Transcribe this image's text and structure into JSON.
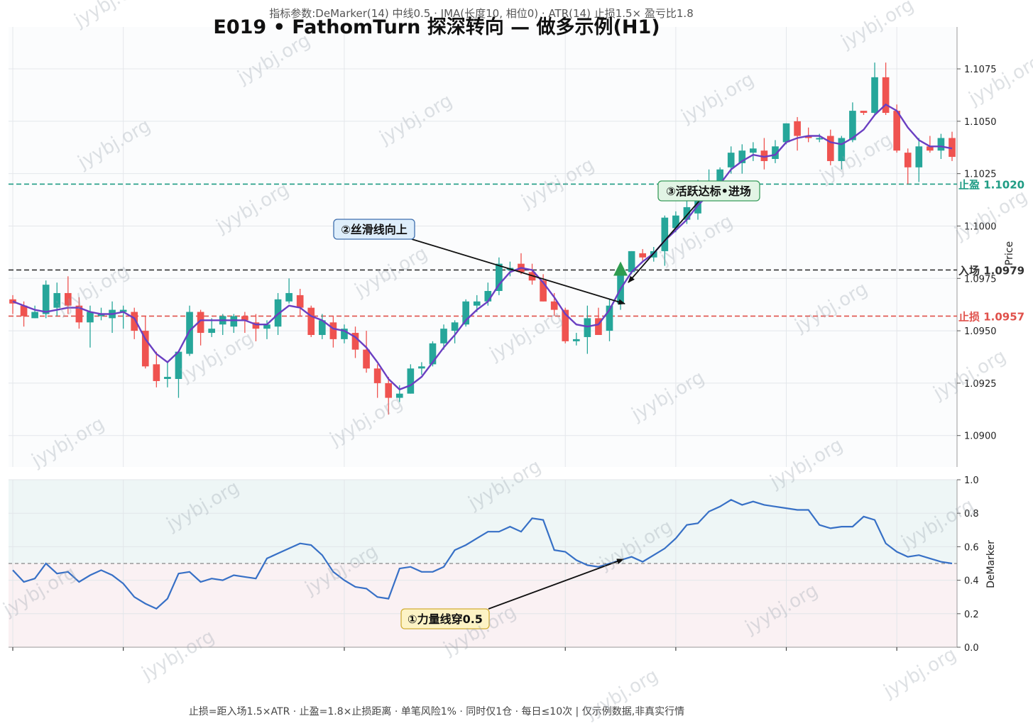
{
  "subtitle": "指标参数:DeMarker(14) 中线0.5 · JMA(长度10, 相位0) · ATR(14) 止损1.5× 盈亏比1.8",
  "title": "E019 • FathomTurn 探深转向 — 做多示例(H1)",
  "footer": "止损=距入场1.5×ATR · 止盈=1.8×止损距离 · 单笔风险1% · 同时仅1仓 · 每日≤10次 | 仅示例数据,非真实行情",
  "watermark": "jyybj.org",
  "colors": {
    "up": "#26a69a",
    "down": "#ef5350",
    "jma": "#6a3fc2",
    "demarker": "#3770c6",
    "take_profit": "#1f9c84",
    "entry": "#333333",
    "stop_loss": "#e0514b",
    "entry_marker": "#2e9c4f"
  },
  "annotations": {
    "a1": "①力量线穿0.5",
    "a2": "②丝滑线向上",
    "a3": "③活跃达标•进场"
  },
  "chart_data": [
    {
      "type": "candlestick",
      "ylabel": "Price",
      "ylim": [
        1.0885,
        1.1095
      ],
      "yticks": [
        "1.0900",
        "1.0925",
        "1.0950",
        "1.0975",
        "1.1000",
        "1.1025",
        "1.1050",
        "1.1075"
      ],
      "ytick_values": [
        1.09,
        1.0925,
        1.095,
        1.0975,
        1.1,
        1.1025,
        1.105,
        1.1075
      ],
      "x_ticks_at_bar": [
        0,
        10,
        30,
        50,
        60,
        70,
        80
      ],
      "candles": [
        {
          "o": 1.0965,
          "h": 1.0967,
          "l": 1.0958,
          "c": 1.0963
        },
        {
          "o": 1.0962,
          "h": 1.0964,
          "l": 1.0952,
          "c": 1.0957
        },
        {
          "o": 1.0956,
          "h": 1.0962,
          "l": 1.0956,
          "c": 1.0959
        },
        {
          "o": 1.0958,
          "h": 1.0974,
          "l": 1.0956,
          "c": 1.0972
        },
        {
          "o": 1.0961,
          "h": 1.0973,
          "l": 1.0957,
          "c": 1.0968
        },
        {
          "o": 1.0968,
          "h": 1.0976,
          "l": 1.0958,
          "c": 1.0962
        },
        {
          "o": 1.0962,
          "h": 1.0966,
          "l": 1.0951,
          "c": 1.0954
        },
        {
          "o": 1.0954,
          "h": 1.0962,
          "l": 1.0942,
          "c": 1.0959
        },
        {
          "o": 1.0957,
          "h": 1.0961,
          "l": 1.0955,
          "c": 1.0958
        },
        {
          "o": 1.0956,
          "h": 1.0964,
          "l": 1.0949,
          "c": 1.096
        },
        {
          "o": 1.0959,
          "h": 1.0962,
          "l": 1.0951,
          "c": 1.096
        },
        {
          "o": 1.0959,
          "h": 1.0961,
          "l": 1.0946,
          "c": 1.095
        },
        {
          "o": 1.095,
          "h": 1.0957,
          "l": 1.0932,
          "c": 1.0933
        },
        {
          "o": 1.0934,
          "h": 1.094,
          "l": 1.0923,
          "c": 1.0926
        },
        {
          "o": 1.0927,
          "h": 1.0935,
          "l": 1.0923,
          "c": 1.0928
        },
        {
          "o": 1.0927,
          "h": 1.094,
          "l": 1.0918,
          "c": 1.094
        },
        {
          "o": 1.0939,
          "h": 1.0962,
          "l": 1.0938,
          "c": 1.0959
        },
        {
          "o": 1.0959,
          "h": 1.096,
          "l": 1.0943,
          "c": 1.0949
        },
        {
          "o": 1.0949,
          "h": 1.0956,
          "l": 1.0947,
          "c": 1.0951
        },
        {
          "o": 1.0953,
          "h": 1.0958,
          "l": 1.0948,
          "c": 1.0957
        },
        {
          "o": 1.0952,
          "h": 1.0958,
          "l": 1.0949,
          "c": 1.0957
        },
        {
          "o": 1.0957,
          "h": 1.0959,
          "l": 1.0949,
          "c": 1.0955
        },
        {
          "o": 1.0954,
          "h": 1.0958,
          "l": 1.0945,
          "c": 1.0951
        },
        {
          "o": 1.0951,
          "h": 1.0955,
          "l": 1.0946,
          "c": 1.0953
        },
        {
          "o": 1.0952,
          "h": 1.0968,
          "l": 1.0948,
          "c": 1.0965
        },
        {
          "o": 1.0964,
          "h": 1.0975,
          "l": 1.0963,
          "c": 1.0968
        },
        {
          "o": 1.0967,
          "h": 1.097,
          "l": 1.0957,
          "c": 1.0961
        },
        {
          "o": 1.0961,
          "h": 1.0962,
          "l": 1.0947,
          "c": 1.0948
        },
        {
          "o": 1.0948,
          "h": 1.0958,
          "l": 1.0946,
          "c": 1.0955
        },
        {
          "o": 1.0954,
          "h": 1.0957,
          "l": 1.0942,
          "c": 1.0946
        },
        {
          "o": 1.0946,
          "h": 1.0953,
          "l": 1.0944,
          "c": 1.0951
        },
        {
          "o": 1.0949,
          "h": 1.0952,
          "l": 1.0937,
          "c": 1.0941
        },
        {
          "o": 1.0941,
          "h": 1.095,
          "l": 1.093,
          "c": 1.0932
        },
        {
          "o": 1.0932,
          "h": 1.0934,
          "l": 1.0918,
          "c": 1.0925
        },
        {
          "o": 1.0925,
          "h": 1.0928,
          "l": 1.091,
          "c": 1.0918
        },
        {
          "o": 1.0918,
          "h": 1.0924,
          "l": 1.0916,
          "c": 1.092
        },
        {
          "o": 1.092,
          "h": 1.0934,
          "l": 1.092,
          "c": 1.0932
        },
        {
          "o": 1.0932,
          "h": 1.0935,
          "l": 1.0929,
          "c": 1.0933
        },
        {
          "o": 1.0934,
          "h": 1.0945,
          "l": 1.0933,
          "c": 1.0944
        },
        {
          "o": 1.0944,
          "h": 1.0953,
          "l": 1.0941,
          "c": 1.0951
        },
        {
          "o": 1.095,
          "h": 1.0955,
          "l": 1.0944,
          "c": 1.0954
        },
        {
          "o": 1.0953,
          "h": 1.0965,
          "l": 1.0952,
          "c": 1.0964
        },
        {
          "o": 1.0962,
          "h": 1.0967,
          "l": 1.0959,
          "c": 1.0964
        },
        {
          "o": 1.0964,
          "h": 1.0973,
          "l": 1.0962,
          "c": 1.0969
        },
        {
          "o": 1.0969,
          "h": 1.0985,
          "l": 1.0967,
          "c": 1.0982
        },
        {
          "o": 1.0979,
          "h": 1.0983,
          "l": 1.0976,
          "c": 1.098
        },
        {
          "o": 1.0982,
          "h": 1.0987,
          "l": 1.0977,
          "c": 1.0978
        },
        {
          "o": 1.0978,
          "h": 1.0982,
          "l": 1.0972,
          "c": 1.0974
        },
        {
          "o": 1.0974,
          "h": 1.0977,
          "l": 1.0964,
          "c": 1.0964
        },
        {
          "o": 1.0964,
          "h": 1.0968,
          "l": 1.0957,
          "c": 1.096
        },
        {
          "o": 1.096,
          "h": 1.0961,
          "l": 1.0944,
          "c": 1.0945
        },
        {
          "o": 1.0945,
          "h": 1.0949,
          "l": 1.0943,
          "c": 1.0946
        },
        {
          "o": 1.0947,
          "h": 1.0962,
          "l": 1.0939,
          "c": 1.0956
        },
        {
          "o": 1.0956,
          "h": 1.0961,
          "l": 1.0948,
          "c": 1.0948
        },
        {
          "o": 1.095,
          "h": 1.0965,
          "l": 1.0945,
          "c": 1.0962
        },
        {
          "o": 1.0963,
          "h": 1.0978,
          "l": 1.096,
          "c": 1.0978
        },
        {
          "o": 1.0978,
          "h": 1.0988,
          "l": 1.0977,
          "c": 1.0988
        },
        {
          "o": 1.0987,
          "h": 1.0989,
          "l": 1.0983,
          "c": 1.0985
        },
        {
          "o": 1.0985,
          "h": 1.099,
          "l": 1.0983,
          "c": 1.0988
        },
        {
          "o": 1.0988,
          "h": 1.1005,
          "l": 1.0981,
          "c": 1.1004
        },
        {
          "o": 1.0999,
          "h": 1.1007,
          "l": 1.0997,
          "c": 1.1005
        },
        {
          "o": 1.1003,
          "h": 1.1012,
          "l": 1.1001,
          "c": 1.1009
        },
        {
          "o": 1.1006,
          "h": 1.1022,
          "l": 1.1003,
          "c": 1.1019
        },
        {
          "o": 1.1018,
          "h": 1.1027,
          "l": 1.1013,
          "c": 1.1018
        },
        {
          "o": 1.1018,
          "h": 1.1028,
          "l": 1.1016,
          "c": 1.1027
        },
        {
          "o": 1.1028,
          "h": 1.1038,
          "l": 1.1025,
          "c": 1.1035
        },
        {
          "o": 1.103,
          "h": 1.1039,
          "l": 1.1025,
          "c": 1.1036
        },
        {
          "o": 1.1035,
          "h": 1.104,
          "l": 1.1031,
          "c": 1.1037
        },
        {
          "o": 1.1036,
          "h": 1.1042,
          "l": 1.1027,
          "c": 1.1031
        },
        {
          "o": 1.1032,
          "h": 1.1041,
          "l": 1.103,
          "c": 1.1038
        },
        {
          "o": 1.104,
          "h": 1.1049,
          "l": 1.1039,
          "c": 1.1049
        },
        {
          "o": 1.105,
          "h": 1.1052,
          "l": 1.1036,
          "c": 1.1043
        },
        {
          "o": 1.1043,
          "h": 1.1047,
          "l": 1.104,
          "c": 1.1042
        },
        {
          "o": 1.1042,
          "h": 1.1044,
          "l": 1.104,
          "c": 1.1042
        },
        {
          "o": 1.1043,
          "h": 1.1046,
          "l": 1.1029,
          "c": 1.1031
        },
        {
          "o": 1.1031,
          "h": 1.1043,
          "l": 1.1027,
          "c": 1.1042
        },
        {
          "o": 1.1041,
          "h": 1.1059,
          "l": 1.104,
          "c": 1.1055
        },
        {
          "o": 1.1055,
          "h": 1.1055,
          "l": 1.1053,
          "c": 1.1054
        },
        {
          "o": 1.1054,
          "h": 1.1078,
          "l": 1.1053,
          "c": 1.1071
        },
        {
          "o": 1.1071,
          "h": 1.1078,
          "l": 1.1053,
          "c": 1.1054
        },
        {
          "o": 1.1055,
          "h": 1.1058,
          "l": 1.1035,
          "c": 1.1036
        },
        {
          "o": 1.1035,
          "h": 1.1037,
          "l": 1.102,
          "c": 1.1028
        },
        {
          "o": 1.1028,
          "h": 1.1042,
          "l": 1.1021,
          "c": 1.1038
        },
        {
          "o": 1.1038,
          "h": 1.1043,
          "l": 1.1035,
          "c": 1.1036
        },
        {
          "o": 1.1036,
          "h": 1.1044,
          "l": 1.1032,
          "c": 1.1042
        },
        {
          "o": 1.1042,
          "h": 1.1045,
          "l": 1.1031,
          "c": 1.1033
        }
      ],
      "jma": [
        1.0964,
        1.0962,
        1.096,
        1.0959,
        1.096,
        1.0961,
        1.0961,
        1.0959,
        1.0958,
        1.0958,
        1.0959,
        1.0956,
        1.0946,
        1.0939,
        1.0935,
        1.094,
        1.095,
        1.0955,
        1.0955,
        1.0955,
        1.0955,
        1.0955,
        1.0953,
        1.0953,
        1.0958,
        1.0962,
        1.0961,
        1.0957,
        1.0955,
        1.0951,
        1.095,
        1.0947,
        1.0942,
        1.0935,
        1.0927,
        1.0922,
        1.0924,
        1.0928,
        1.0935,
        1.0942,
        1.0948,
        1.0955,
        1.096,
        1.0964,
        1.0972,
        1.0978,
        1.098,
        1.0979,
        1.0973,
        1.0966,
        1.0958,
        1.0953,
        1.0952,
        1.0953,
        1.096,
        1.097,
        1.0978,
        1.0983,
        1.0987,
        1.0993,
        1.0998,
        1.1003,
        1.101,
        1.1015,
        1.102,
        1.1027,
        1.1031,
        1.1034,
        1.1033,
        1.1034,
        1.104,
        1.1042,
        1.1043,
        1.1043,
        1.104,
        1.1039,
        1.1042,
        1.1046,
        1.1053,
        1.1058,
        1.1055,
        1.1047,
        1.1041,
        1.1038,
        1.1038,
        1.1037
      ],
      "levels": [
        {
          "name": "take_profit",
          "label": "止盈 1.1020",
          "value": 1.102
        },
        {
          "name": "entry",
          "label": "入场 1.0979",
          "value": 1.0979
        },
        {
          "name": "stop_loss",
          "label": "止损 1.0957",
          "value": 1.0957
        }
      ],
      "entry_bar": 55
    },
    {
      "type": "line",
      "ylabel": "DeMarker",
      "ylim": [
        0.0,
        1.0
      ],
      "yticks": [
        "0.0",
        "0.2",
        "0.4",
        "0.6",
        "0.8",
        "1.0"
      ],
      "ytick_values": [
        0,
        0.2,
        0.4,
        0.6,
        0.8,
        1.0
      ],
      "midline": 0.5,
      "values": [
        0.46,
        0.39,
        0.41,
        0.5,
        0.44,
        0.45,
        0.39,
        0.43,
        0.46,
        0.43,
        0.38,
        0.3,
        0.26,
        0.23,
        0.29,
        0.44,
        0.45,
        0.39,
        0.41,
        0.4,
        0.43,
        0.42,
        0.41,
        0.53,
        0.56,
        0.59,
        0.62,
        0.61,
        0.55,
        0.45,
        0.4,
        0.36,
        0.35,
        0.3,
        0.29,
        0.47,
        0.48,
        0.45,
        0.45,
        0.48,
        0.58,
        0.61,
        0.65,
        0.69,
        0.69,
        0.72,
        0.69,
        0.77,
        0.76,
        0.58,
        0.57,
        0.52,
        0.49,
        0.48,
        0.5,
        0.52,
        0.54,
        0.51,
        0.55,
        0.59,
        0.65,
        0.73,
        0.74,
        0.81,
        0.84,
        0.88,
        0.85,
        0.87,
        0.85,
        0.84,
        0.83,
        0.82,
        0.82,
        0.73,
        0.71,
        0.72,
        0.72,
        0.78,
        0.76,
        0.62,
        0.57,
        0.54,
        0.55,
        0.53,
        0.51,
        0.5
      ]
    }
  ]
}
